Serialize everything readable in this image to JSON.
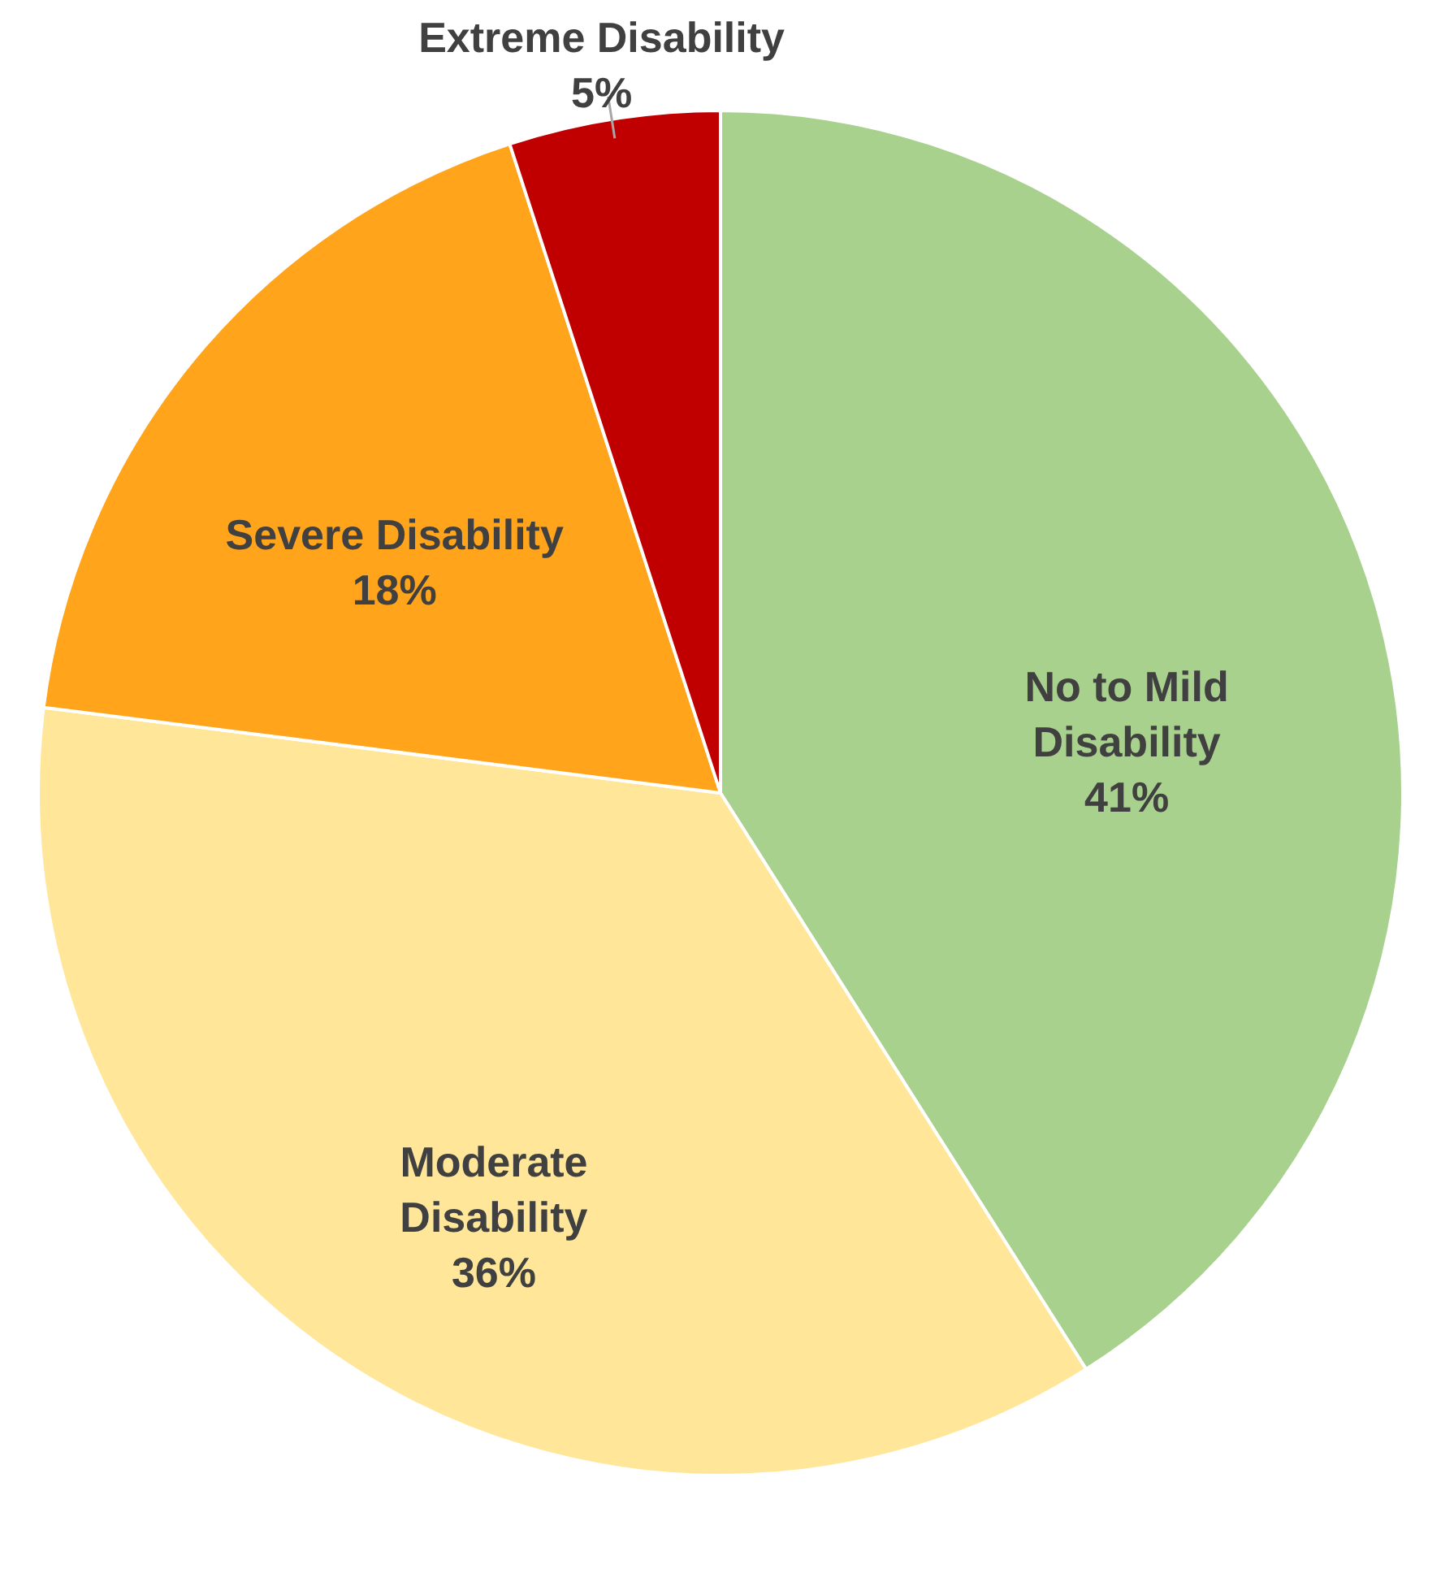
{
  "chart_data": {
    "type": "pie",
    "categories": [
      "No to Mild Disability",
      "Moderate Disability",
      "Severe Disability",
      "Extreme Disability"
    ],
    "values": [
      41,
      36,
      18,
      5
    ],
    "value_labels": [
      "41%",
      "36%",
      "18%",
      "5%"
    ],
    "colors": [
      "#a9d18e",
      "#ffe699",
      "#ffa41b",
      "#c00000"
    ]
  }
}
